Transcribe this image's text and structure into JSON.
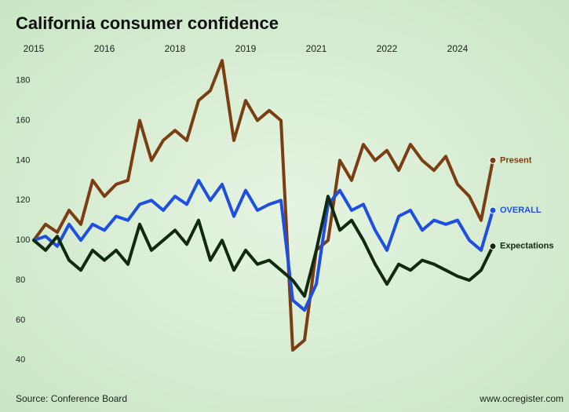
{
  "chart_data": {
    "type": "line",
    "title": "California consumer confidence",
    "source": "Source: Conference Board",
    "credit": "www.ocregister.com",
    "x": [
      2015,
      2015.25,
      2015.5,
      2015.75,
      2016,
      2016.25,
      2016.5,
      2016.75,
      2017,
      2017.25,
      2017.5,
      2017.75,
      2018,
      2018.25,
      2018.5,
      2018.75,
      2019,
      2019.25,
      2019.5,
      2019.75,
      2020,
      2020.25,
      2020.5,
      2020.75,
      2021,
      2021.25,
      2021.5,
      2021.75,
      2022,
      2022.25,
      2022.5,
      2022.75,
      2023,
      2023.25,
      2023.5,
      2023.75,
      2024,
      2024.25,
      2024.5,
      2024.75
    ],
    "series": [
      {
        "name": "Present",
        "color": "#7a3e12",
        "values": [
          100,
          108,
          104,
          115,
          108,
          130,
          122,
          128,
          130,
          160,
          140,
          150,
          155,
          150,
          170,
          175,
          190,
          150,
          170,
          160,
          165,
          160,
          45,
          50,
          95,
          100,
          140,
          130,
          148,
          140,
          145,
          135,
          148,
          140,
          135,
          142,
          128,
          122,
          110,
          140
        ]
      },
      {
        "name": "OVERALL",
        "color": "#1f4fe0",
        "values": [
          100,
          102,
          97,
          108,
          100,
          108,
          105,
          112,
          110,
          118,
          120,
          115,
          122,
          118,
          130,
          120,
          128,
          112,
          125,
          115,
          118,
          120,
          70,
          65,
          78,
          118,
          125,
          115,
          118,
          105,
          95,
          112,
          115,
          105,
          110,
          108,
          110,
          100,
          95,
          115
        ]
      },
      {
        "name": "Expectations",
        "color": "#0f2a0f",
        "values": [
          100,
          95,
          102,
          90,
          85,
          95,
          90,
          95,
          88,
          108,
          95,
          100,
          105,
          98,
          110,
          90,
          100,
          85,
          95,
          88,
          90,
          85,
          80,
          72,
          95,
          122,
          105,
          110,
          100,
          88,
          78,
          88,
          85,
          90,
          88,
          85,
          82,
          80,
          85,
          97
        ]
      }
    ],
    "xlim": [
      2014.85,
      2024.85
    ],
    "xticks": [
      {
        "value": 2015,
        "label": "2015"
      },
      {
        "value": 2016.5,
        "label": "2016"
      },
      {
        "value": 2018,
        "label": "2018"
      },
      {
        "value": 2019.5,
        "label": "2019"
      },
      {
        "value": 2021,
        "label": "2021"
      },
      {
        "value": 2022.5,
        "label": "2022"
      },
      {
        "value": 2024,
        "label": "2024"
      }
    ],
    "ylim": [
      36,
      194
    ],
    "yticks": [
      40,
      60,
      80,
      100,
      120,
      140,
      160,
      180
    ],
    "grid": false
  }
}
